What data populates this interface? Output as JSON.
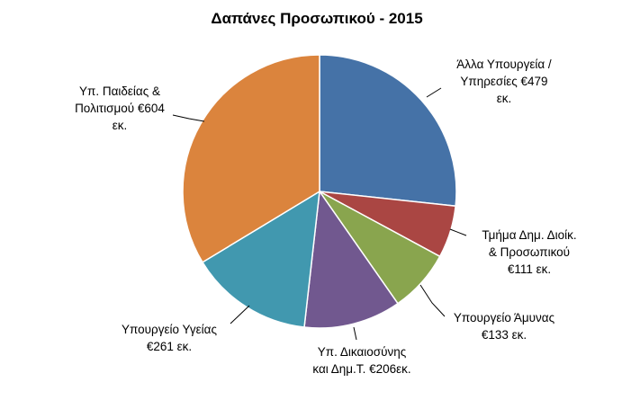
{
  "chart_data": {
    "type": "pie",
    "title": "Δαπάνες Προσωπικού - 2015",
    "categories": [
      "Άλλα Υπουργεία / Υπηρεσίες",
      "Τμήμα Δημ. Διοίκ. & Προσωπικού",
      "Υπουργείο Άμυνας",
      "Υπ. Δικαιοσύνης και Δημ.Τ.",
      "Υπουργείο Υγείας",
      "Υπ. Παιδείας & Πολιτισμού"
    ],
    "values": [
      479,
      111,
      133,
      206,
      261,
      604
    ],
    "unit": "€ εκ.",
    "colors": [
      "#4572A7",
      "#AA4643",
      "#89A54E",
      "#71588F",
      "#4198AF",
      "#DB843D"
    ],
    "data_labels": [
      [
        "Άλλα Υπουργεία /",
        "Υπηρεσίες €479",
        "εκ."
      ],
      [
        "Τμήμα Δημ. Διοίκ.",
        "& Προσωπικού",
        "€111 εκ."
      ],
      [
        "Υπουργείο Άμυνας",
        "€133 εκ."
      ],
      [
        "Υπ. Δικαιοσύνης",
        "και Δημ.Τ. €206εκ."
      ],
      [
        "Υπουργείο Υγείας",
        "€261 εκ."
      ],
      [
        "Υπ. Παιδείας &",
        "Πολιτισμού €604",
        "εκ."
      ]
    ]
  }
}
